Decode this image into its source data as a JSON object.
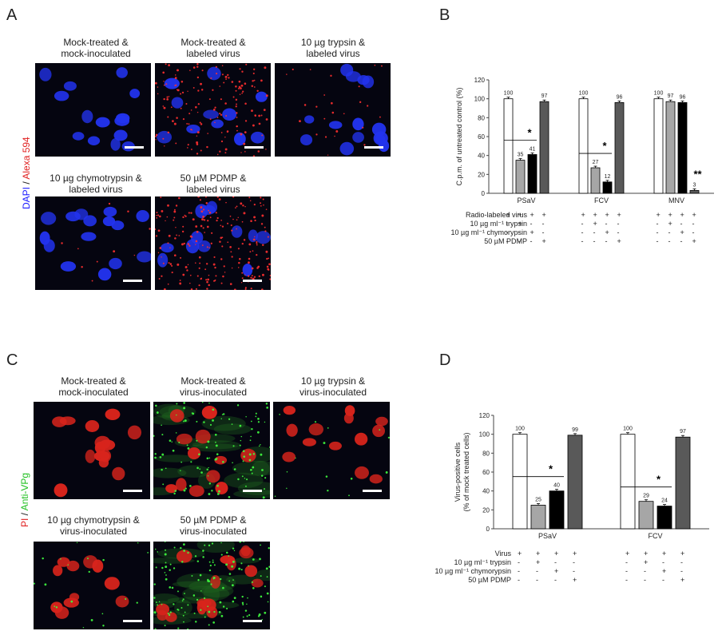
{
  "panels": {
    "A": {
      "letter": "A",
      "side_label": {
        "part1": "DAPI",
        "sep": " / ",
        "part2": "Alexa 594"
      },
      "images": [
        {
          "caption_line1": "Mock-treated &",
          "caption_line2": "mock-inoculated"
        },
        {
          "caption_line1": "Mock-treated &",
          "caption_line2": "labeled virus"
        },
        {
          "caption_line1": "10 µg trypsin &",
          "caption_line2": "labeled virus"
        },
        {
          "caption_line1": "10 µg chymotrypsin &",
          "caption_line2": "labeled virus"
        },
        {
          "caption_line1": "50 µM PDMP &",
          "caption_line2": "labeled virus"
        }
      ]
    },
    "B": {
      "letter": "B"
    },
    "C": {
      "letter": "C",
      "side_label": {
        "part1": "PI",
        "sep": " / ",
        "part2": "Anti-VPg"
      },
      "images": [
        {
          "caption_line1": "Mock-treated &",
          "caption_line2": "mock-inoculated"
        },
        {
          "caption_line1": "Mock-treated &",
          "caption_line2": "virus-inoculated"
        },
        {
          "caption_line1": "10 µg trypsin &",
          "caption_line2": "virus-inoculated"
        },
        {
          "caption_line1": "10 µg chymotrypsin &",
          "caption_line2": "virus-inoculated"
        },
        {
          "caption_line1": "50 µM PDMP &",
          "caption_line2": "virus-inoculated"
        }
      ]
    },
    "D": {
      "letter": "D"
    }
  },
  "colors": {
    "white_bar": "#ffffff",
    "light_gray": "#a6a6a6",
    "black": "#000000",
    "dark_gray": "#595959",
    "dapi": "#1a1aff",
    "alexa": "#ff2020",
    "pi": "#e02020",
    "vpg": "#20e020"
  },
  "chart_data": [
    {
      "type": "bar",
      "panel": "B",
      "ylabel": "C.p.m. of untreated control (%)",
      "ylim": [
        0,
        120
      ],
      "yticks": [
        "0",
        "20",
        "40",
        "60",
        "80",
        "100",
        "120"
      ],
      "groups": [
        {
          "name": "PSaV",
          "values": [
            100,
            35,
            41,
            97
          ],
          "labels": [
            "100",
            "35",
            "41",
            "97"
          ],
          "sig": "*"
        },
        {
          "name": "FCV",
          "values": [
            100,
            27,
            12,
            96
          ],
          "labels": [
            "100",
            "27",
            "12",
            "96"
          ],
          "sig": "*"
        },
        {
          "name": "MNV",
          "values": [
            100,
            97,
            96,
            3
          ],
          "labels": [
            "100",
            "97",
            "96",
            "3"
          ],
          "sig": "**"
        }
      ],
      "condition_table": [
        {
          "label": "Radio-labeled virus",
          "signs": [
            "+",
            "+",
            "+",
            "+"
          ]
        },
        {
          "label": "10 µg ml⁻¹ trypsin",
          "signs": [
            "-",
            "+",
            "-",
            "-"
          ]
        },
        {
          "label": "10 µg ml⁻¹ chymorypsin",
          "signs": [
            "-",
            "-",
            "+",
            "-"
          ]
        },
        {
          "label": "50 µM PDMP",
          "signs": [
            "-",
            "-",
            "-",
            "+"
          ]
        }
      ]
    },
    {
      "type": "bar",
      "panel": "D",
      "ylabel_line1": "Virus-positive cells",
      "ylabel_line2": "(% of mock treated cells)",
      "ylim": [
        0,
        120
      ],
      "yticks": [
        "0",
        "20",
        "40",
        "60",
        "80",
        "100",
        "120"
      ],
      "groups": [
        {
          "name": "PSaV",
          "values": [
            100,
            25,
            40,
            99
          ],
          "labels": [
            "100",
            "25",
            "40",
            "99"
          ],
          "sig": "*"
        },
        {
          "name": "FCV",
          "values": [
            100,
            29,
            24,
            97
          ],
          "labels": [
            "100",
            "29",
            "24",
            "97"
          ],
          "sig": "*"
        }
      ],
      "condition_table": [
        {
          "label": "Virus",
          "signs": [
            "+",
            "+",
            "+",
            "+"
          ]
        },
        {
          "label": "10 µg ml⁻¹ trypsin",
          "signs": [
            "-",
            "+",
            "-",
            "-"
          ]
        },
        {
          "label": "10 µg ml⁻¹ chymorypsin",
          "signs": [
            "-",
            "-",
            "+",
            "-"
          ]
        },
        {
          "label": "50 µM PDMP",
          "signs": [
            "-",
            "-",
            "-",
            "+"
          ]
        }
      ]
    }
  ]
}
